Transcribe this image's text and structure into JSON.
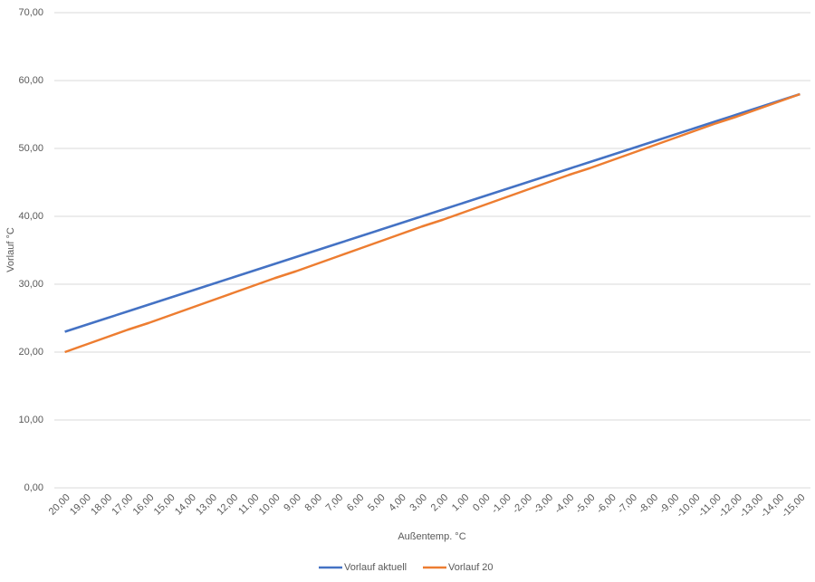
{
  "chart_data": {
    "type": "line",
    "x_label": "Außentemp. °C",
    "y_label": "Vorlauf °C",
    "categories": [
      "20,00",
      "19,00",
      "18,00",
      "17,00",
      "16,00",
      "15,00",
      "14,00",
      "13,00",
      "12,00",
      "11,00",
      "10,00",
      "9,00",
      "8,00",
      "7,00",
      "6,00",
      "5,00",
      "4,00",
      "3,00",
      "2,00",
      "1,00",
      "0,00",
      "-1,00",
      "-2,00",
      "-3,00",
      "-4,00",
      "-5,00",
      "-6,00",
      "-7,00",
      "-8,00",
      "-9,00",
      "-10,00",
      "-11,00",
      "-12,00",
      "-13,00",
      "-14,00",
      "-15,00"
    ],
    "series": [
      {
        "name": "Vorlauf aktuell",
        "color": "#4472c4",
        "values": [
          23,
          24,
          25,
          26,
          27,
          28,
          29,
          30,
          31,
          32,
          33,
          34,
          35,
          36,
          37,
          38,
          39,
          40,
          41,
          42,
          43,
          44,
          45,
          46,
          47,
          48,
          49,
          50,
          51,
          52,
          53,
          54,
          55,
          56,
          57,
          58
        ]
      },
      {
        "name": "Vorlauf 20",
        "color": "#ed7d31",
        "values": [
          20,
          21.1,
          22.2,
          23.3,
          24.3,
          25.4,
          26.5,
          27.6,
          28.7,
          29.8,
          30.9,
          31.9,
          33.0,
          34.1,
          35.2,
          36.3,
          37.4,
          38.5,
          39.5,
          40.6,
          41.7,
          42.8,
          43.9,
          45.0,
          46.1,
          47.1,
          48.2,
          49.3,
          50.4,
          51.5,
          52.6,
          53.7,
          54.7,
          55.8,
          56.9,
          58.0
        ]
      }
    ],
    "ylim": [
      0,
      70
    ],
    "yticks": [
      {
        "value": 0,
        "label": "0,00"
      },
      {
        "value": 10,
        "label": "10,00"
      },
      {
        "value": 20,
        "label": "20,00"
      },
      {
        "value": 30,
        "label": "30,00"
      },
      {
        "value": 40,
        "label": "40,00"
      },
      {
        "value": 50,
        "label": "50,00"
      },
      {
        "value": 60,
        "label": "60,00"
      },
      {
        "value": 70,
        "label": "70,00"
      }
    ],
    "grid": true,
    "legend": "bottom"
  }
}
